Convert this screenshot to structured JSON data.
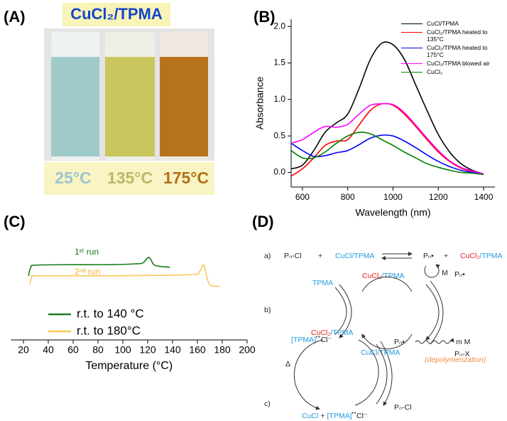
{
  "panel_labels": [
    "(A)",
    "(B)",
    "(C)",
    "(D)"
  ],
  "photo": {
    "title": "CuCl₂/TPMA",
    "temperatures": [
      "25°C",
      "135°C",
      "175°C"
    ]
  },
  "chart_data": [
    {
      "type": "line",
      "x_label": "Wavelength (nm)",
      "y_label": "Absorbance",
      "x": [
        550,
        600,
        650,
        700,
        750,
        800,
        850,
        900,
        950,
        1000,
        1050,
        1100,
        1150,
        1200,
        1250,
        1300,
        1350,
        1400
      ],
      "series": [
        {
          "name": "CuCl/TPMA",
          "color": "#000000",
          "values": [
            0.05,
            0.1,
            0.3,
            0.55,
            0.68,
            0.8,
            1.15,
            1.55,
            1.77,
            1.75,
            1.55,
            1.2,
            0.85,
            0.52,
            0.28,
            0.12,
            0.03,
            -0.02
          ]
        },
        {
          "name": "CuCl₂/TPMA heated to 135°C",
          "color": "#ff0000",
          "values": [
            -0.05,
            0.05,
            0.2,
            0.37,
            0.43,
            0.45,
            0.65,
            0.85,
            0.94,
            0.92,
            0.8,
            0.63,
            0.45,
            0.28,
            0.15,
            0.06,
            0.01,
            -0.03
          ]
        },
        {
          "name": "CuCl₂/TPMA heated to 175°C",
          "color": "#0000ff",
          "values": [
            0.4,
            0.3,
            0.22,
            0.23,
            0.27,
            0.3,
            0.38,
            0.47,
            0.51,
            0.5,
            0.43,
            0.34,
            0.24,
            0.15,
            0.08,
            0.03,
            0.0,
            -0.02
          ]
        },
        {
          "name": "CuCl₂/TPMA blowed air",
          "color": "#ff00ff",
          "values": [
            0.4,
            0.45,
            0.55,
            0.63,
            0.62,
            0.66,
            0.8,
            0.92,
            0.94,
            0.93,
            0.82,
            0.65,
            0.47,
            0.3,
            0.16,
            0.07,
            0.02,
            -0.02
          ]
        },
        {
          "name": "CuCl₂",
          "color": "#008000",
          "values": [
            0.3,
            0.2,
            0.2,
            0.28,
            0.4,
            0.5,
            0.55,
            0.53,
            0.45,
            0.37,
            0.28,
            0.2,
            0.12,
            0.07,
            0.03,
            0.0,
            -0.01,
            -0.03
          ]
        }
      ],
      "xlim": [
        550,
        1450
      ],
      "xticks": [
        600,
        800,
        1000,
        1200,
        1400
      ],
      "ylim": [
        -0.2,
        2.1
      ],
      "yticks": [
        {
          "value": 0,
          "label": "0.0"
        },
        0.5,
        {
          "value": 1,
          "label": "1.0"
        },
        1.5,
        {
          "value": 2,
          "label": "2.0"
        }
      ],
      "legend": "upper right"
    },
    {
      "type": "line",
      "x_label": "Temperature (°C)",
      "series": [
        {
          "name": "r.t. to 140 °C",
          "color": "#1a7d1a",
          "x": [
            24,
            26,
            30,
            60,
            90,
            110,
            116,
            121,
            125,
            130,
            138
          ],
          "values": [
            3.7,
            5.7,
            6.2,
            6.3,
            6.3,
            6.5,
            6.7,
            8.0,
            6.3,
            5.9,
            5.7
          ]
        },
        {
          "name": "r.t. to 180°C",
          "color": "#fbc85a",
          "x": [
            25,
            27,
            30,
            80,
            130,
            158,
            161,
            163,
            165,
            167,
            170,
            178
          ],
          "values": [
            1.7,
            3.5,
            3.7,
            3.7,
            3.8,
            4.0,
            4.5,
            5.3,
            6.3,
            4.2,
            1.6,
            1.2
          ]
        }
      ],
      "annotations": [
        "1ˢᵗ run",
        "2ⁿᵈ run"
      ],
      "xlim": [
        10,
        200
      ],
      "xticks": [
        20,
        40,
        60,
        80,
        100,
        120,
        140,
        160,
        180,
        200
      ],
      "ylim": [
        0,
        10
      ],
      "legend": "lower left"
    }
  ],
  "scheme": {
    "a": {
      "label": "a)",
      "initiator": "Pₙ-Cl",
      "plus1": "+",
      "activator_metal": "CuCl",
      "activator_ligand": "/TPMA",
      "radical": "Pₙ•",
      "plus2": "+",
      "deactivator_metal": "CuCl₂",
      "deactivator_ligand": "/TPMA",
      "monomer": "M"
    },
    "b": {
      "label": "b)",
      "ligand": "TPMA",
      "oxidized_ligand": "[TPMA]",
      "charge": "•+",
      "chloride": "Cl⁻",
      "deactivator_metal": "CuCl₂",
      "deactivator_ligand": "/TPMA",
      "activator": "CuCl/TPMA",
      "radical": "Pₙ•",
      "dormant": "Pₙ-X"
    },
    "c": {
      "label": "c)",
      "heat": "Δ",
      "deactivator_metal": "CuCl₂",
      "deactivator_ligand": "/TPMA",
      "radical": "Pₙ•",
      "product": "m M",
      "note": "(depolymerization)",
      "dormant": "Pₙ-Cl",
      "activator": "CuCl",
      "plus": "+",
      "oxidized_ligand": "[TPMA]",
      "charge": "•+",
      "chloride": "Cl⁻"
    }
  }
}
